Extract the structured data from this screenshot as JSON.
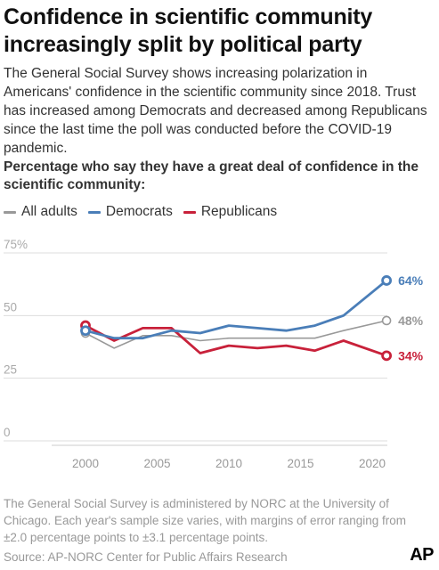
{
  "header": {
    "title": "Confidence in scientific community increasingly split by political party",
    "description": "The General Social Survey shows increasing polarization in Americans' confidence in the scientific community since 2018. Trust has increased among Democrats and decreased among Republicans since the last time the poll was conducted before the COVID-19 pandemic.",
    "subtitle": "Percentage who say they have a great deal of confidence in the scientific community:"
  },
  "footer": {
    "note": "The General Social Survey is administered by NORC at the University of Chicago. Each year's sample size varies, with margins of error ranging from ±2.0 percentage points to ±3.1 percentage points.",
    "source": "Source: AP-NORC Center for Public Affairs Research",
    "logo": "AP"
  },
  "chart_data": {
    "type": "line",
    "title": "Confidence in scientific community increasingly split by political party",
    "subtitle": "Percentage who say they have a great deal of confidence in the scientific community:",
    "ylim": [
      0,
      75
    ],
    "xlim": [
      1997,
      2023
    ],
    "yticks": [
      0,
      25,
      50,
      75
    ],
    "ytick_labels": [
      "0",
      "25",
      "50",
      "75%"
    ],
    "xticks": [
      2000,
      2005,
      2010,
      2015,
      2020
    ],
    "grid": true,
    "legend": "top-left",
    "series": [
      {
        "name": "All adults",
        "color": "#999999",
        "x": [
          2000,
          2002,
          2004,
          2006,
          2008,
          2010,
          2012,
          2014,
          2016,
          2018,
          2021
        ],
        "values": [
          43,
          37,
          42,
          42,
          40,
          41,
          41,
          41,
          41,
          44,
          48
        ],
        "end_label": "48%"
      },
      {
        "name": "Democrats",
        "color": "#4a7eb8",
        "x": [
          2000,
          2002,
          2004,
          2006,
          2008,
          2010,
          2012,
          2014,
          2016,
          2018,
          2021
        ],
        "values": [
          44,
          41,
          41,
          44,
          43,
          46,
          45,
          44,
          46,
          50,
          64
        ],
        "end_label": "64%"
      },
      {
        "name": "Republicans",
        "color": "#c8213a",
        "x": [
          2000,
          2002,
          2004,
          2006,
          2008,
          2010,
          2012,
          2014,
          2016,
          2018,
          2021
        ],
        "values": [
          46,
          40,
          45,
          45,
          35,
          38,
          37,
          38,
          36,
          40,
          34
        ],
        "end_label": "34%"
      }
    ]
  }
}
